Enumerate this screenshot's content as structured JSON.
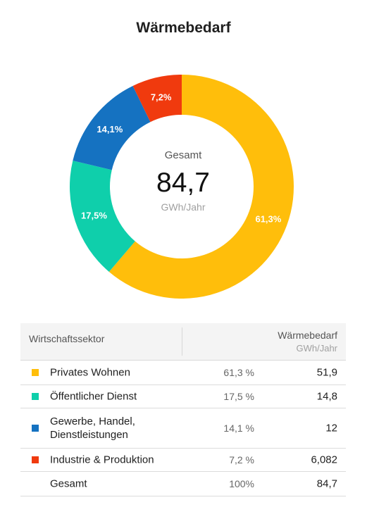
{
  "chart_data": {
    "type": "pie",
    "title": "Wärmebedarf",
    "center": {
      "label": "Gesamt",
      "value": "84,7",
      "unit": "GWh/Jahr"
    },
    "slices": [
      {
        "label": "Privates Wohnen",
        "value": 61.3,
        "display": "61,3%",
        "color": "#FFBE0B"
      },
      {
        "label": "Öffentlicher Dienst",
        "value": 17.5,
        "display": "17,5%",
        "color": "#0FCFAB"
      },
      {
        "label": "Gewerbe, Handel, Dienstleistungen",
        "value": 14.1,
        "display": "14,1%",
        "color": "#1572C1"
      },
      {
        "label": "Industrie & Produktion",
        "value": 7.2,
        "display": "7,2%",
        "color": "#F03A0E"
      }
    ]
  },
  "table": {
    "header": {
      "sector": "Wirtschaftssektor",
      "value": "Wärmebedarf",
      "unit": "GWh/Jahr"
    },
    "rows": [
      {
        "sector": "Privates Wohnen",
        "percent": "61,3 %",
        "value": "51,9",
        "color": "#FFBE0B"
      },
      {
        "sector": "Öffentlicher Dienst",
        "percent": "17,5 %",
        "value": "14,8",
        "color": "#0FCFAB"
      },
      {
        "sector": "Gewerbe, Handel,\nDienstleistungen",
        "percent": "14,1 %",
        "value": "12",
        "color": "#1572C1"
      },
      {
        "sector": "Industrie & Produktion",
        "percent": "7,2 %",
        "value": "6,082",
        "color": "#F03A0E"
      },
      {
        "sector": "Gesamt",
        "percent": "100%",
        "value": "84,7",
        "color": ""
      }
    ]
  }
}
